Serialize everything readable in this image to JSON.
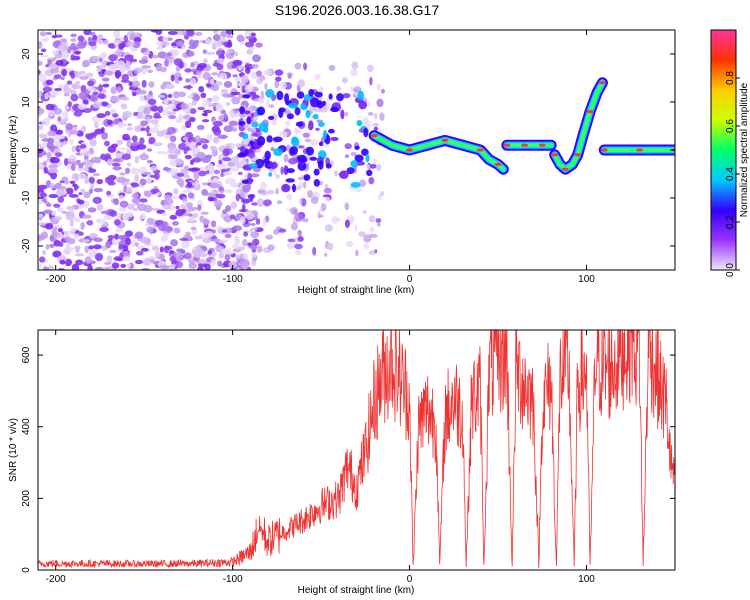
{
  "chart_data": [
    {
      "type": "heatmap",
      "title": "S196.2026.003.16.38.G17",
      "xlabel": "Height of straight line (km)",
      "ylabel": "Frequency (Hz)",
      "xlim": [
        -210,
        150
      ],
      "ylim": [
        -25,
        25
      ],
      "xticks": [
        -200,
        -100,
        0,
        100
      ],
      "yticks": [
        -20,
        -10,
        0,
        10,
        20
      ],
      "colorbar": {
        "label": "Normalized spectral amplitude",
        "range": [
          0.0,
          1.0
        ],
        "ticks": [
          0.0,
          0.2,
          0.4,
          0.6,
          0.8
        ],
        "tick_labels": [
          "0.0",
          "0.2",
          "0.4",
          "0.6",
          "0.8"
        ],
        "colors": [
          "#f0e6fa",
          "#9933ff",
          "#3300ff",
          "#00ccff",
          "#00ff66",
          "#ccff00",
          "#ffcc00",
          "#ff3300",
          "#ff3399"
        ]
      },
      "ridge": {
        "description": "dominant frequency track",
        "segments": [
          {
            "x": [
              -20,
              -10,
              0,
              10,
              20,
              30,
              40,
              45,
              50,
              53
            ],
            "y": [
              3,
              1,
              0,
              1,
              2,
              1,
              0,
              -2,
              -3,
              -4
            ]
          },
          {
            "x": [
              55,
              60,
              65,
              70,
              75,
              80
            ],
            "y": [
              1,
              1,
              1,
              1,
              1,
              1
            ]
          },
          {
            "x": [
              82,
              85,
              88,
              92,
              95,
              98,
              102,
              106,
              109
            ],
            "y": [
              -1,
              -3,
              -4,
              -3,
              -1,
              3,
              8,
              12,
              14
            ]
          },
          {
            "x": [
              110,
              120,
              130,
              140,
              150
            ],
            "y": [
              0,
              0,
              0,
              0,
              0
            ]
          }
        ]
      }
    },
    {
      "type": "line",
      "xlabel": "Height of straight line (km)",
      "ylabel": "SNR (10 * v/v)",
      "xlim": [
        -210,
        150
      ],
      "ylim": [
        0,
        670
      ],
      "xticks": [
        -200,
        -100,
        0,
        100
      ],
      "yticks": [
        0,
        200,
        400,
        600
      ],
      "series": [
        {
          "name": "SNR",
          "color": "#ee3333",
          "x": [
            -210,
            -180,
            -150,
            -120,
            -100,
            -90,
            -85,
            -80,
            -70,
            -60,
            -50,
            -40,
            -35,
            -30,
            -25,
            -20,
            -15,
            -10,
            -5,
            0,
            2,
            5,
            8,
            10,
            15,
            17,
            20,
            25,
            30,
            32,
            35,
            40,
            42,
            45,
            50,
            55,
            58,
            60,
            65,
            70,
            73,
            75,
            80,
            83,
            85,
            90,
            93,
            95,
            100,
            102,
            105,
            110,
            115,
            120,
            125,
            130,
            132,
            135,
            140,
            145,
            148,
            150
          ],
          "values": [
            18,
            18,
            17,
            18,
            22,
            50,
            120,
            80,
            110,
            140,
            180,
            200,
            290,
            230,
            330,
            470,
            550,
            590,
            530,
            480,
            10,
            400,
            430,
            450,
            410,
            10,
            430,
            480,
            440,
            10,
            470,
            500,
            10,
            560,
            590,
            600,
            10,
            560,
            520,
            470,
            10,
            460,
            530,
            10,
            540,
            560,
            10,
            520,
            560,
            10,
            590,
            560,
            570,
            610,
            650,
            600,
            10,
            640,
            540,
            460,
            280,
            270
          ]
        }
      ]
    }
  ]
}
